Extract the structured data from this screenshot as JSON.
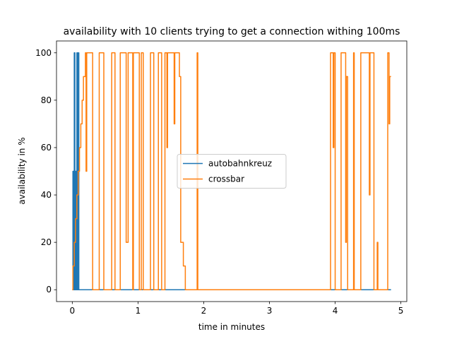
{
  "chart_data": {
    "type": "line",
    "title": "availability with 10 clients trying to get a connection withing 100ms",
    "x_label": "time in minutes",
    "y_label": "availability in %",
    "xlim": [
      -0.24,
      5.09
    ],
    "ylim": [
      -5,
      105
    ],
    "xticks": [
      0,
      1,
      2,
      3,
      4,
      5
    ],
    "yticks": [
      0,
      20,
      40,
      60,
      80,
      100
    ],
    "legend": "center",
    "grid": false,
    "series": [
      {
        "name": "autobahnkreuz",
        "color": "#1f77b4",
        "x": [
          0,
          0.01,
          0.01,
          0.02,
          0.02,
          0.03,
          0.03,
          0.04,
          0.04,
          0.05,
          0.05,
          0.06,
          0.06,
          0.07,
          0.07,
          0.08,
          0.08,
          0.09,
          0.09,
          0.1,
          0.1,
          4.85
        ],
        "values": [
          0,
          0,
          50,
          50,
          0,
          0,
          100,
          100,
          0,
          0,
          50,
          50,
          0,
          0,
          100,
          100,
          0,
          0,
          100,
          100,
          0,
          0
        ]
      },
      {
        "name": "crossbar",
        "color": "#ff7f0e",
        "x": [
          0,
          0.01,
          0.01,
          0.03,
          0.03,
          0.05,
          0.05,
          0.07,
          0.07,
          0.09,
          0.09,
          0.11,
          0.11,
          0.13,
          0.13,
          0.15,
          0.15,
          0.17,
          0.17,
          0.2,
          0.2,
          0.21,
          0.21,
          0.22,
          0.22,
          0.31,
          0.31,
          0.41,
          0.41,
          0.48,
          0.48,
          0.6,
          0.6,
          0.65,
          0.65,
          0.73,
          0.73,
          0.82,
          0.82,
          0.85,
          0.85,
          0.92,
          0.92,
          0.93,
          0.93,
          1.02,
          1.02,
          1.05,
          1.05,
          1.08,
          1.08,
          1.19,
          1.19,
          1.24,
          1.24,
          1.31,
          1.31,
          1.36,
          1.36,
          1.41,
          1.41,
          1.44,
          1.44,
          1.45,
          1.45,
          1.55,
          1.55,
          1.56,
          1.56,
          1.63,
          1.63,
          1.65,
          1.65,
          1.69,
          1.69,
          1.72,
          1.72,
          1.9,
          1.9,
          1.91,
          1.91,
          3.93,
          3.93,
          3.97,
          3.97,
          3.98,
          3.98,
          4.0,
          4.0,
          4.09,
          4.09,
          4.16,
          4.16,
          4.17,
          4.17,
          4.19,
          4.19,
          4.28,
          4.28,
          4.29,
          4.29,
          4.39,
          4.39,
          4.52,
          4.52,
          4.53,
          4.53,
          4.59,
          4.59,
          4.64,
          4.64,
          4.65,
          4.65,
          4.8,
          4.8,
          4.82,
          4.82,
          4.83,
          4.83,
          4.85
        ],
        "values": [
          0,
          0,
          10,
          10,
          20,
          20,
          30,
          30,
          40,
          40,
          50,
          50,
          60,
          60,
          70,
          70,
          80,
          80,
          90,
          90,
          100,
          100,
          50,
          50,
          100,
          100,
          0,
          0,
          100,
          100,
          0,
          0,
          100,
          100,
          0,
          0,
          100,
          100,
          20,
          20,
          100,
          100,
          0,
          0,
          100,
          100,
          0,
          0,
          100,
          100,
          0,
          0,
          100,
          100,
          0,
          0,
          100,
          100,
          0,
          0,
          100,
          100,
          60,
          60,
          100,
          100,
          70,
          70,
          100,
          100,
          90,
          90,
          20,
          20,
          10,
          10,
          0,
          0,
          100,
          100,
          0,
          0,
          100,
          100,
          60,
          60,
          100,
          100,
          0,
          0,
          100,
          100,
          20,
          20,
          90,
          90,
          0,
          0,
          100,
          100,
          0,
          0,
          100,
          100,
          40,
          40,
          100,
          100,
          0,
          0,
          20,
          20,
          0,
          0,
          100,
          100,
          70,
          70,
          90,
          90
        ]
      }
    ]
  }
}
